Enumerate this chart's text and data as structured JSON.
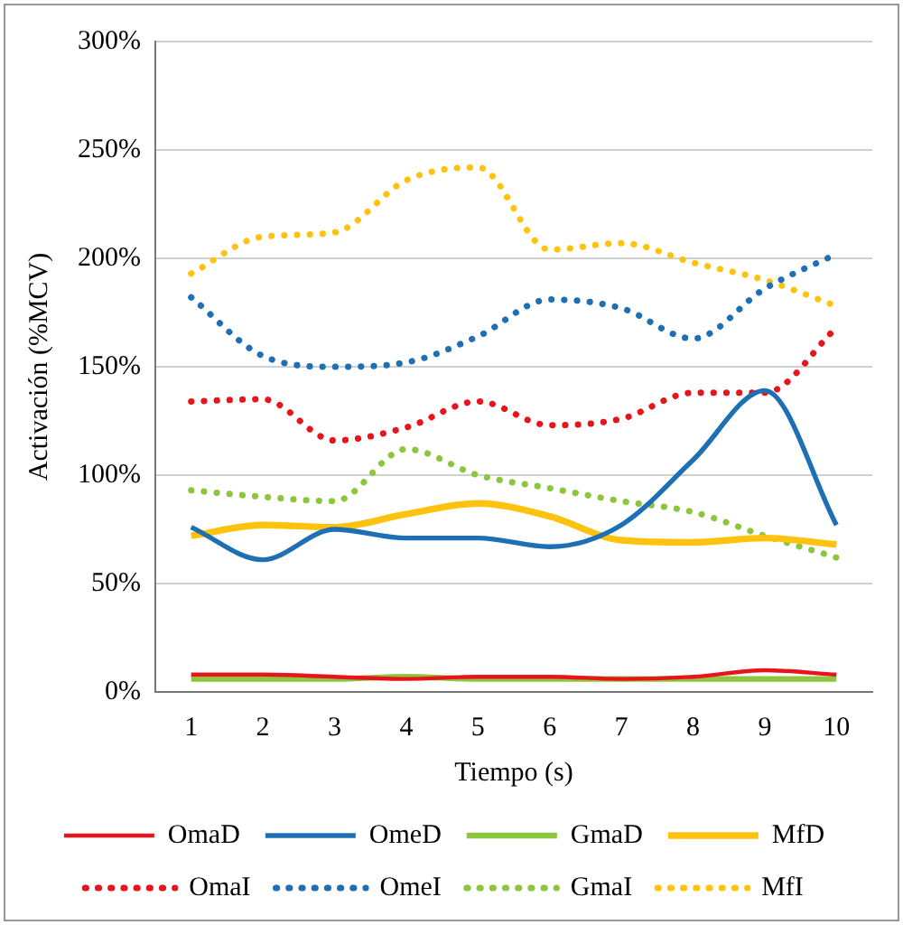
{
  "chart_data": {
    "type": "line",
    "xlabel": "Tiempo (s)",
    "ylabel": "Activación (%MCV)",
    "categories": [
      "1",
      "2",
      "3",
      "4",
      "5",
      "6",
      "7",
      "8",
      "9",
      "10"
    ],
    "ylim": [
      0,
      300
    ],
    "yticks": [
      {
        "value": 0,
        "label": "0%"
      },
      {
        "value": 50,
        "label": "50%"
      },
      {
        "value": 100,
        "label": "100%"
      },
      {
        "value": 150,
        "label": "150%"
      },
      {
        "value": 200,
        "label": "200%"
      },
      {
        "value": 250,
        "label": "250%"
      },
      {
        "value": 300,
        "label": "300%"
      }
    ],
    "grid": "y",
    "legend": "bottom",
    "marker": "none",
    "series": [
      {
        "name": "OmaD",
        "color": "#e8141b",
        "line_style": "solid",
        "values": [
          8,
          8,
          7,
          6,
          7,
          7,
          6,
          7,
          10,
          8
        ]
      },
      {
        "name": "OmeD",
        "color": "#1f6fb4",
        "line_style": "solid",
        "values": [
          76,
          61,
          75,
          71,
          71,
          67,
          77,
          107,
          139,
          77
        ]
      },
      {
        "name": "GmaD",
        "color": "#8cc63f",
        "line_style": "solid",
        "values": [
          6,
          6,
          6,
          7,
          6,
          6,
          6,
          6,
          6,
          6
        ]
      },
      {
        "name": "MfD",
        "color": "#ffc20e",
        "line_style": "solid",
        "values": [
          72,
          77,
          76,
          82,
          87,
          81,
          70,
          69,
          71,
          68
        ]
      },
      {
        "name": "OmaI",
        "color": "#e8141b",
        "line_style": "dotted",
        "values": [
          134,
          135,
          116,
          122,
          134,
          123,
          126,
          138,
          138,
          168
        ]
      },
      {
        "name": "OmeI",
        "color": "#1f6fb4",
        "line_style": "dotted",
        "values": [
          182,
          155,
          150,
          152,
          164,
          181,
          177,
          163,
          186,
          202
        ]
      },
      {
        "name": "GmaI",
        "color": "#8cc63f",
        "line_style": "dotted",
        "values": [
          93,
          90,
          88,
          112,
          100,
          94,
          88,
          83,
          72,
          62
        ]
      },
      {
        "name": "MfI",
        "color": "#ffc20e",
        "line_style": "dotted",
        "values": [
          193,
          210,
          212,
          236,
          242,
          204,
          207,
          198,
          190,
          178
        ]
      }
    ]
  }
}
